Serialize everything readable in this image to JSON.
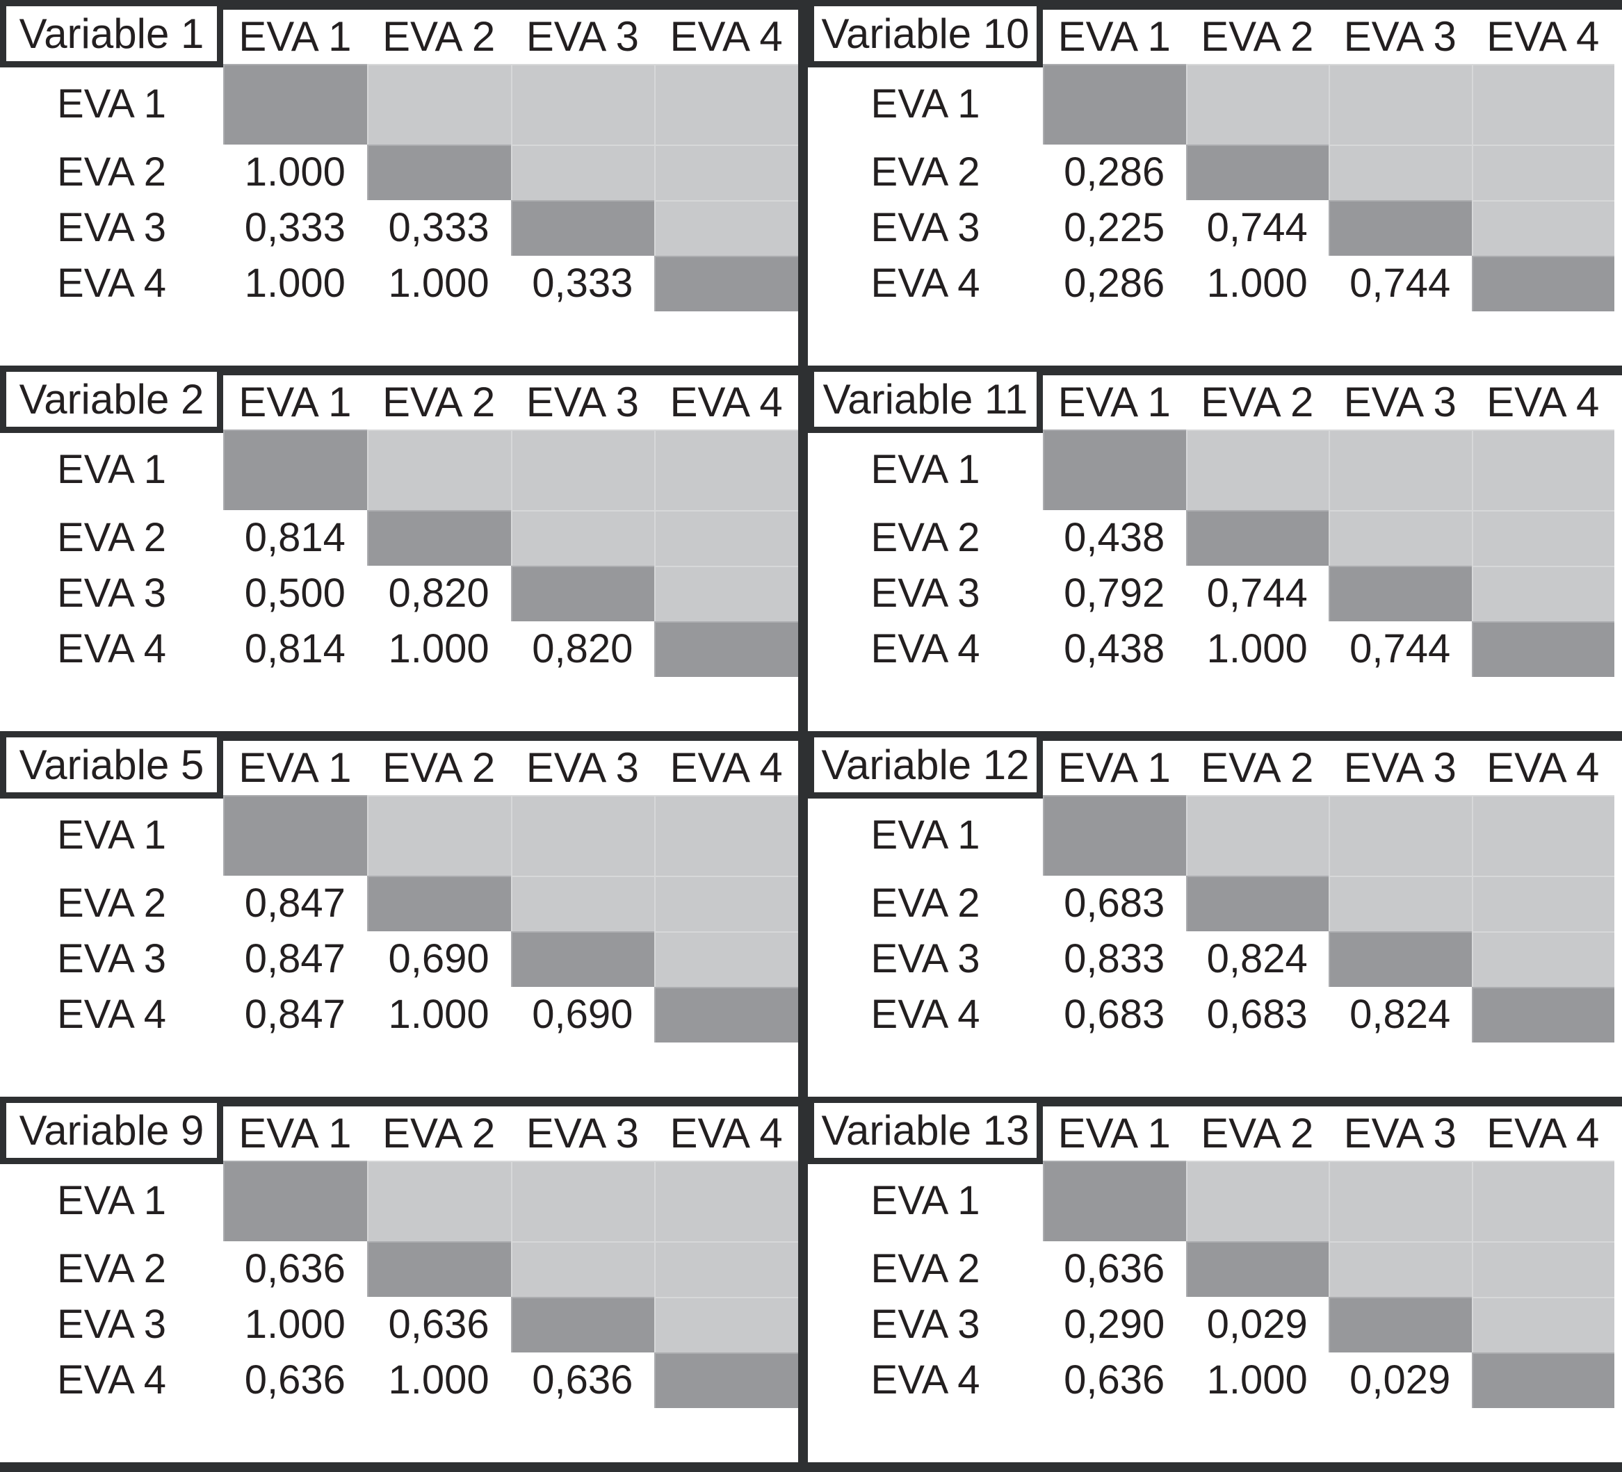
{
  "colors": {
    "diagonal_cell": "#97989b",
    "upper_triangle_cell": "#c8c9cb",
    "divider_bar": "#2e3032",
    "text": "#231f20",
    "background": "#ffffff"
  },
  "tables": [
    {
      "title": "Variable 1",
      "col_headers": [
        "EVA 1",
        "EVA 2",
        "EVA 3",
        "EVA 4"
      ],
      "row_headers": [
        "EVA 1",
        "EVA 2",
        "EVA 3",
        "EVA 4"
      ],
      "cells": [
        [
          "",
          "",
          "",
          ""
        ],
        [
          "1.000",
          "",
          "",
          ""
        ],
        [
          "0,333",
          "0,333",
          "",
          ""
        ],
        [
          "1.000",
          "1.000",
          "0,333",
          ""
        ]
      ]
    },
    {
      "title": "Variable 10",
      "col_headers": [
        "EVA 1",
        "EVA 2",
        "EVA 3",
        "EVA 4"
      ],
      "row_headers": [
        "EVA 1",
        "EVA 2",
        "EVA 3",
        "EVA 4"
      ],
      "cells": [
        [
          "",
          "",
          "",
          ""
        ],
        [
          "0,286",
          "",
          "",
          ""
        ],
        [
          "0,225",
          "0,744",
          "",
          ""
        ],
        [
          "0,286",
          "1.000",
          "0,744",
          ""
        ]
      ]
    },
    {
      "title": "Variable 2",
      "col_headers": [
        "EVA 1",
        "EVA 2",
        "EVA 3",
        "EVA 4"
      ],
      "row_headers": [
        "EVA 1",
        "EVA 2",
        "EVA 3",
        "EVA 4"
      ],
      "cells": [
        [
          "",
          "",
          "",
          ""
        ],
        [
          "0,814",
          "",
          "",
          ""
        ],
        [
          "0,500",
          "0,820",
          "",
          ""
        ],
        [
          "0,814",
          "1.000",
          "0,820",
          ""
        ]
      ]
    },
    {
      "title": "Variable 11",
      "col_headers": [
        "EVA 1",
        "EVA 2",
        "EVA 3",
        "EVA 4"
      ],
      "row_headers": [
        "EVA 1",
        "EVA 2",
        "EVA 3",
        "EVA 4"
      ],
      "cells": [
        [
          "",
          "",
          "",
          ""
        ],
        [
          "0,438",
          "",
          "",
          ""
        ],
        [
          "0,792",
          "0,744",
          "",
          ""
        ],
        [
          "0,438",
          "1.000",
          "0,744",
          ""
        ]
      ]
    },
    {
      "title": "Variable 5",
      "col_headers": [
        "EVA 1",
        "EVA 2",
        "EVA 3",
        "EVA 4"
      ],
      "row_headers": [
        "EVA 1",
        "EVA 2",
        "EVA 3",
        "EVA 4"
      ],
      "cells": [
        [
          "",
          "",
          "",
          ""
        ],
        [
          "0,847",
          "",
          "",
          ""
        ],
        [
          "0,847",
          "0,690",
          "",
          ""
        ],
        [
          "0,847",
          "1.000",
          "0,690",
          ""
        ]
      ]
    },
    {
      "title": "Variable 12",
      "col_headers": [
        "EVA 1",
        "EVA 2",
        "EVA 3",
        "EVA 4"
      ],
      "row_headers": [
        "EVA 1",
        "EVA 2",
        "EVA 3",
        "EVA 4"
      ],
      "cells": [
        [
          "",
          "",
          "",
          ""
        ],
        [
          "0,683",
          "",
          "",
          ""
        ],
        [
          "0,833",
          "0,824",
          "",
          ""
        ],
        [
          "0,683",
          "0,683",
          "0,824",
          ""
        ]
      ]
    },
    {
      "title": "Variable 9",
      "col_headers": [
        "EVA 1",
        "EVA 2",
        "EVA 3",
        "EVA 4"
      ],
      "row_headers": [
        "EVA 1",
        "EVA 2",
        "EVA 3",
        "EVA 4"
      ],
      "cells": [
        [
          "",
          "",
          "",
          ""
        ],
        [
          "0,636",
          "",
          "",
          ""
        ],
        [
          "1.000",
          "0,636",
          "",
          ""
        ],
        [
          "0,636",
          "1.000",
          "0,636",
          ""
        ]
      ]
    },
    {
      "title": "Variable 13",
      "col_headers": [
        "EVA 1",
        "EVA 2",
        "EVA 3",
        "EVA 4"
      ],
      "row_headers": [
        "EVA 1",
        "EVA 2",
        "EVA 3",
        "EVA 4"
      ],
      "cells": [
        [
          "",
          "",
          "",
          ""
        ],
        [
          "0,636",
          "",
          "",
          ""
        ],
        [
          "0,290",
          "0,029",
          "",
          ""
        ],
        [
          "0,636",
          "1.000",
          "0,029",
          ""
        ]
      ]
    }
  ]
}
